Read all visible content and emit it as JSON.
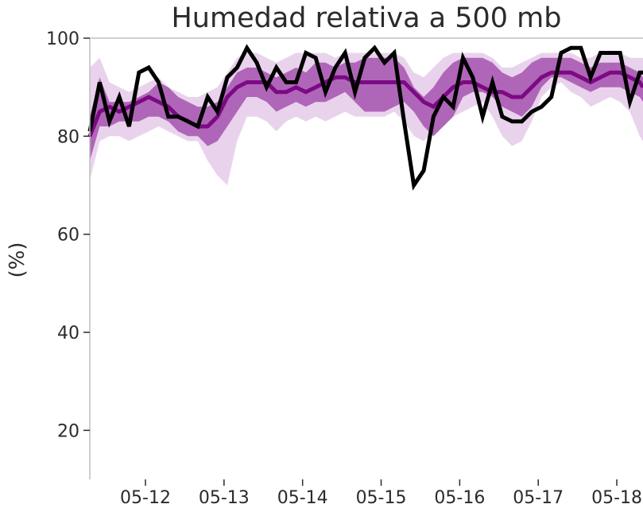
{
  "chart_data": {
    "type": "line",
    "title": "Humedad relativa a 500 mb",
    "xlabel": "",
    "ylabel": "(%)",
    "ylim": [
      10,
      100
    ],
    "yticks": [
      20,
      40,
      60,
      80,
      100
    ],
    "x_range": [
      "2025-05-11T07:00",
      "2025-05-18T08:00"
    ],
    "xticks": [
      {
        "x": "2025-05-12T00:00",
        "label": "05-12"
      },
      {
        "x": "2025-05-13T00:00",
        "label": "05-13"
      },
      {
        "x": "2025-05-14T00:00",
        "label": "05-14"
      },
      {
        "x": "2025-05-15T00:00",
        "label": "05-15"
      },
      {
        "x": "2025-05-16T00:00",
        "label": "05-16"
      },
      {
        "x": "2025-05-17T00:00",
        "label": "05-17"
      },
      {
        "x": "2025-05-18T00:00",
        "label": "05-18"
      }
    ],
    "grid": false,
    "legend": "none",
    "colors": {
      "median": "#7b0a84",
      "inner_band": "#b066b8",
      "outer_band": "#e9d3ec",
      "observed": "#000000",
      "axis": "#bfbfbf"
    },
    "x": [
      "2025-05-11T07:00",
      "2025-05-11T10:00",
      "2025-05-11T13:00",
      "2025-05-11T16:00",
      "2025-05-11T19:00",
      "2025-05-11T22:00",
      "2025-05-12T01:00",
      "2025-05-12T04:00",
      "2025-05-12T07:00",
      "2025-05-12T10:00",
      "2025-05-12T13:00",
      "2025-05-12T16:00",
      "2025-05-12T19:00",
      "2025-05-12T22:00",
      "2025-05-13T01:00",
      "2025-05-13T04:00",
      "2025-05-13T07:00",
      "2025-05-13T10:00",
      "2025-05-13T13:00",
      "2025-05-13T16:00",
      "2025-05-13T19:00",
      "2025-05-13T22:00",
      "2025-05-14T01:00",
      "2025-05-14T04:00",
      "2025-05-14T07:00",
      "2025-05-14T10:00",
      "2025-05-14T13:00",
      "2025-05-14T16:00",
      "2025-05-14T19:00",
      "2025-05-14T22:00",
      "2025-05-15T01:00",
      "2025-05-15T04:00",
      "2025-05-15T07:00",
      "2025-05-15T10:00",
      "2025-05-15T13:00",
      "2025-05-15T16:00",
      "2025-05-15T19:00",
      "2025-05-15T22:00",
      "2025-05-16T01:00",
      "2025-05-16T04:00",
      "2025-05-16T07:00",
      "2025-05-16T10:00",
      "2025-05-16T13:00",
      "2025-05-16T16:00",
      "2025-05-16T19:00",
      "2025-05-16T22:00",
      "2025-05-17T01:00",
      "2025-05-17T04:00",
      "2025-05-17T07:00",
      "2025-05-17T10:00",
      "2025-05-17T13:00",
      "2025-05-17T16:00",
      "2025-05-17T19:00",
      "2025-05-17T22:00",
      "2025-05-18T01:00",
      "2025-05-18T04:00",
      "2025-05-18T07:00",
      "2025-05-18T08:00"
    ],
    "series": [
      {
        "role": "outer_band",
        "low": [
          71,
          79,
          80,
          80,
          79,
          80,
          81,
          82,
          81,
          80,
          79,
          79,
          75,
          72,
          70,
          79,
          84,
          84,
          83,
          81,
          83,
          84,
          83,
          84,
          83,
          84,
          85,
          84,
          84,
          84,
          84,
          85,
          83,
          80,
          79,
          81,
          83,
          84,
          85,
          86,
          87,
          84,
          80,
          78,
          79,
          83,
          88,
          90,
          91,
          89,
          88,
          86,
          87,
          88,
          87,
          85,
          80,
          79
        ],
        "high": [
          94,
          96,
          91,
          90,
          89,
          90,
          91,
          92,
          90,
          89,
          88,
          88,
          89,
          90,
          93,
          96,
          97,
          97,
          96,
          95,
          96,
          97,
          97,
          97,
          97,
          96,
          97,
          97,
          97,
          97,
          97,
          97,
          96,
          93,
          92,
          94,
          96,
          97,
          97,
          97,
          97,
          96,
          94,
          94,
          95,
          96,
          97,
          97,
          97,
          97,
          96,
          96,
          97,
          97,
          97,
          96,
          96,
          96
        ]
      },
      {
        "role": "inner_band",
        "low": [
          75,
          82,
          82,
          83,
          83,
          83,
          84,
          84,
          83,
          81,
          80,
          80,
          78,
          79,
          82,
          85,
          88,
          88,
          87,
          85,
          86,
          87,
          86,
          87,
          87,
          88,
          89,
          87,
          85,
          85,
          85,
          86,
          87,
          85,
          82,
          80,
          82,
          84,
          88,
          89,
          89,
          88,
          86,
          85,
          84,
          86,
          90,
          92,
          92,
          91,
          90,
          89,
          90,
          90,
          90,
          89,
          88,
          87
        ]
      },
      {
        "role": "inner_band_high",
        "high": [
          84,
          92,
          87,
          87,
          87,
          88,
          89,
          91,
          90,
          88,
          87,
          86,
          86,
          87,
          90,
          93,
          94,
          94,
          93,
          92,
          93,
          94,
          93,
          95,
          95,
          94,
          95,
          95,
          96,
          96,
          96,
          96,
          94,
          90,
          88,
          90,
          93,
          95,
          96,
          96,
          96,
          95,
          93,
          92,
          93,
          95,
          96,
          96,
          96,
          96,
          95,
          94,
          95,
          95,
          95,
          94,
          93,
          92
        ]
      },
      {
        "role": "median",
        "values": [
          80,
          85,
          86,
          85,
          86,
          87,
          88,
          87,
          86,
          84,
          83,
          82,
          82,
          84,
          88,
          90,
          91,
          91,
          91,
          89,
          89,
          90,
          89,
          90,
          91,
          92,
          92,
          91,
          91,
          91,
          91,
          91,
          91,
          89,
          87,
          86,
          88,
          90,
          91,
          91,
          90,
          89,
          89,
          88,
          88,
          90,
          92,
          93,
          93,
          93,
          92,
          91,
          92,
          93,
          93,
          92,
          91,
          90
        ]
      },
      {
        "role": "observed",
        "values": [
          81,
          91,
          83,
          88,
          82,
          93,
          94,
          91,
          84,
          84,
          83,
          82,
          88,
          85,
          92,
          94,
          98,
          95,
          90,
          94,
          91,
          91,
          97,
          96,
          89,
          94,
          97,
          89,
          96,
          98,
          95,
          97,
          83,
          70,
          73,
          84,
          88,
          86,
          96,
          92,
          84,
          91,
          84,
          83,
          83,
          85,
          86,
          88,
          97,
          98,
          98,
          92,
          97,
          97,
          97,
          87,
          93,
          93
        ]
      }
    ]
  }
}
